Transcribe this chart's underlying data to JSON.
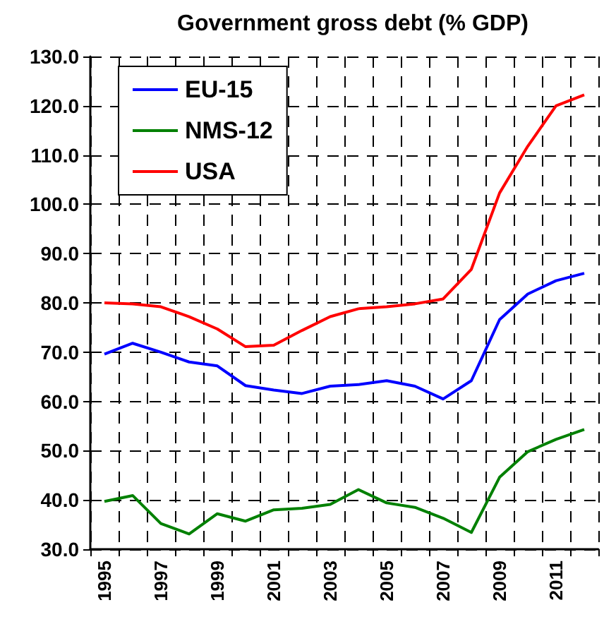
{
  "chart_data": {
    "type": "line",
    "title": "Government gross debt (% GDP)",
    "categories": [
      "1995",
      null,
      "1997",
      null,
      "1999",
      null,
      "2001",
      null,
      "2003",
      null,
      "2005",
      null,
      "2007",
      null,
      "2009",
      null,
      "2011",
      null
    ],
    "series": [
      {
        "name": "EU-15",
        "color": "#0000ff",
        "values": [
          69.6,
          71.8,
          70.0,
          68.0,
          67.2,
          63.2,
          62.3,
          61.6,
          63.1,
          63.4,
          64.2,
          63.1,
          60.5,
          64.2,
          76.6,
          81.8,
          84.5,
          86.0
        ]
      },
      {
        "name": "NMS-12",
        "color": "#008000",
        "values": [
          39.7,
          40.9,
          35.2,
          33.1,
          37.2,
          35.7,
          38.0,
          38.3,
          39.1,
          42.1,
          39.4,
          38.5,
          36.3,
          33.4,
          44.6,
          49.8,
          52.3,
          54.3
        ]
      },
      {
        "name": "USA",
        "color": "#ff0000",
        "values": [
          80.0,
          79.8,
          79.2,
          77.2,
          74.7,
          71.1,
          71.4,
          74.4,
          77.2,
          78.8,
          79.2,
          79.8,
          80.8,
          86.8,
          102.3,
          111.8,
          120.0,
          122.2
        ]
      }
    ],
    "ylim": [
      30,
      130
    ],
    "yticks": [
      {
        "value": 30,
        "label": "30.0"
      },
      {
        "value": 40,
        "label": "40.0"
      },
      {
        "value": 50,
        "label": "50.0"
      },
      {
        "value": 60,
        "label": "60.0"
      },
      {
        "value": 70,
        "label": "70.0"
      },
      {
        "value": 80,
        "label": "80.0"
      },
      {
        "value": 90,
        "label": "90.0"
      },
      {
        "value": 100,
        "label": "100.0"
      },
      {
        "value": 110,
        "label": "110.0"
      },
      {
        "value": 120,
        "label": "120.0"
      },
      {
        "value": 130,
        "label": "130.0"
      }
    ],
    "grid": true,
    "legend": "top left",
    "marker": "none",
    "line_style": "solid"
  }
}
